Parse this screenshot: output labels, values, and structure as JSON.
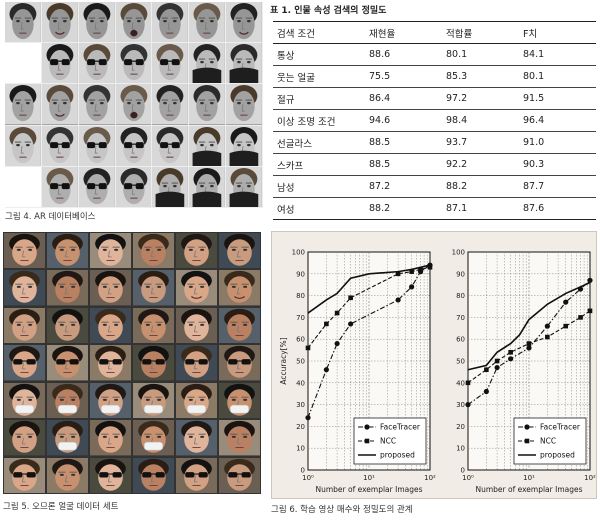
{
  "figure4": {
    "caption": "그림 4. AR 데이터베이스"
  },
  "figure5": {
    "caption": "그림 5. 오므론 얼굴 데이터 세트"
  },
  "figure6": {
    "caption": "그림 6. 학습 영상 매수와 정밀도의 관계"
  },
  "table1": {
    "title": "표 1. 인물 속성 검색의 정밀도",
    "headers": [
      "검색 조건",
      "재현율",
      "적합률",
      "F치"
    ],
    "rows": [
      [
        "통상",
        "88.6",
        "80.1",
        "84.1"
      ],
      [
        "웃는 얼굴",
        "75.5",
        "85.3",
        "80.1"
      ],
      [
        "절규",
        "86.4",
        "97.2",
        "91.5"
      ],
      [
        "이상 조명 조건",
        "94.6",
        "98.4",
        "96.4"
      ],
      [
        "선글라스",
        "88.5",
        "93.7",
        "91.0"
      ],
      [
        "스카프",
        "88.5",
        "92.2",
        "90.3"
      ],
      [
        "남성",
        "87.2",
        "88.2",
        "87.7"
      ],
      [
        "여성",
        "88.2",
        "87.1",
        "87.6"
      ]
    ]
  },
  "chart_data": [
    {
      "type": "line",
      "xscale": "log",
      "xlim": [
        1,
        100
      ],
      "ylim": [
        0,
        100
      ],
      "yticks": [
        0,
        10,
        20,
        30,
        40,
        50,
        60,
        70,
        80,
        90,
        100
      ],
      "xticks": [
        "10⁰",
        "10¹",
        "10²"
      ],
      "xlabel": "Number of exemplar Images",
      "ylabel": "Accuracy[%]",
      "grid": true,
      "legend_position": "bottom-right",
      "series": [
        {
          "name": "FaceTracer",
          "marker": "circle",
          "style": "dash-dot",
          "x": [
            1,
            2,
            3,
            5,
            30,
            50,
            70,
            100
          ],
          "y": [
            24,
            46,
            58,
            67,
            78,
            84,
            91,
            94
          ]
        },
        {
          "name": "NCC",
          "marker": "square",
          "style": "dashed",
          "x": [
            1,
            2,
            3,
            5,
            30,
            50,
            70,
            100
          ],
          "y": [
            56,
            67,
            72,
            79,
            90,
            91,
            92,
            93
          ]
        },
        {
          "name": "proposed",
          "marker": "none",
          "style": "solid",
          "x": [
            1,
            2,
            3,
            5,
            10,
            30,
            50,
            100
          ],
          "y": [
            72,
            78,
            81,
            88,
            90,
            91,
            92,
            94
          ]
        }
      ]
    },
    {
      "type": "line",
      "xscale": "log",
      "xlim": [
        1,
        100
      ],
      "ylim": [
        0,
        100
      ],
      "yticks": [
        0,
        10,
        20,
        30,
        40,
        50,
        60,
        70,
        80,
        90,
        100
      ],
      "xticks": [
        "10⁰",
        "10¹",
        "10²"
      ],
      "xlabel": "Number of exemplar Images",
      "ylabel": "",
      "grid": true,
      "legend_position": "bottom-right",
      "series": [
        {
          "name": "FaceTracer",
          "marker": "circle",
          "style": "dash-dot",
          "x": [
            1,
            2,
            3,
            5,
            10,
            20,
            40,
            70,
            100
          ],
          "y": [
            30,
            36,
            47,
            51,
            56,
            66,
            77,
            83,
            87
          ]
        },
        {
          "name": "NCC",
          "marker": "square",
          "style": "dashed",
          "x": [
            1,
            2,
            3,
            5,
            10,
            20,
            40,
            70,
            100
          ],
          "y": [
            40,
            46,
            50,
            54,
            58,
            61,
            66,
            70,
            73
          ]
        },
        {
          "name": "proposed",
          "marker": "none",
          "style": "solid",
          "x": [
            1,
            2,
            3,
            5,
            7,
            10,
            20,
            40,
            70,
            100
          ],
          "y": [
            46,
            48,
            54,
            58,
            62,
            69,
            76,
            81,
            84,
            86
          ]
        }
      ]
    }
  ]
}
